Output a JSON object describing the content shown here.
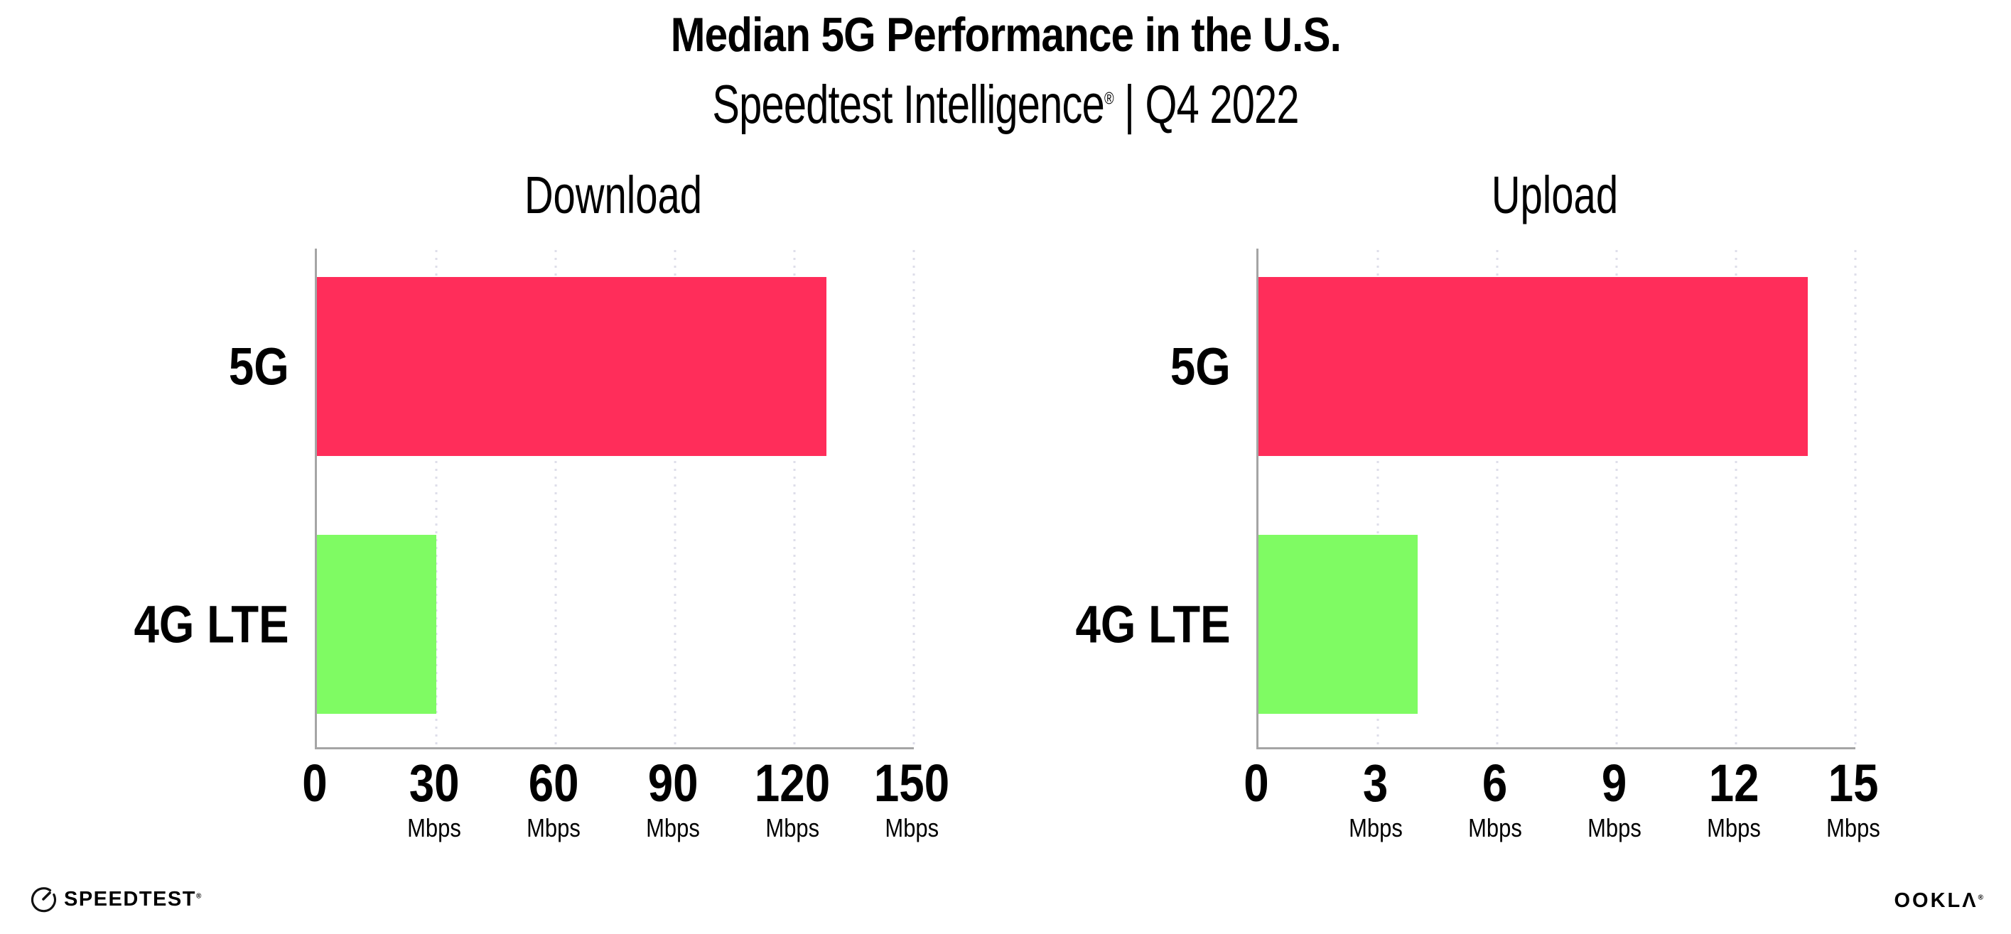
{
  "header": {
    "title": "Median 5G Performance in the U.S.",
    "subtitle": {
      "brand": "Speedtest Intelligence",
      "registered": "®",
      "separator": "|",
      "period": "Q4 2022"
    }
  },
  "colors": {
    "bar_5g": "#FF2D5A",
    "bar_4g_lte": "#7FFB63",
    "axis": "#A5A5A5",
    "gridline": "#DEDEEA",
    "text": "#000000"
  },
  "chart_data": [
    {
      "type": "bar",
      "orientation": "horizontal",
      "title": "Download",
      "categories": [
        "5G",
        "4G LTE"
      ],
      "values": [
        128,
        30
      ],
      "unit": "Mbps",
      "xlim": [
        0,
        150
      ],
      "xticks": [
        0,
        30,
        60,
        90,
        120,
        150
      ],
      "xtick_unit": "Mbps",
      "unit_shown_on_zero_tick": false,
      "series_colors": [
        "#FF2D5A",
        "#7FFB63"
      ],
      "grid": "dotted-vertical-at-ticks",
      "legend": "none"
    },
    {
      "type": "bar",
      "orientation": "horizontal",
      "title": "Upload",
      "categories": [
        "5G",
        "4G LTE"
      ],
      "values": [
        13.8,
        4
      ],
      "unit": "Mbps",
      "xlim": [
        0,
        15
      ],
      "xticks": [
        0,
        3,
        6,
        9,
        12,
        15
      ],
      "xtick_unit": "Mbps",
      "unit_shown_on_zero_tick": false,
      "series_colors": [
        "#FF2D5A",
        "#7FFB63"
      ],
      "grid": "dotted-vertical-at-ticks",
      "legend": "none"
    }
  ],
  "footer": {
    "speedtest_label": "SPEEDTEST",
    "speedtest_registered": "®",
    "ookla_label": "OOKLΛ",
    "ookla_registered": "®"
  }
}
